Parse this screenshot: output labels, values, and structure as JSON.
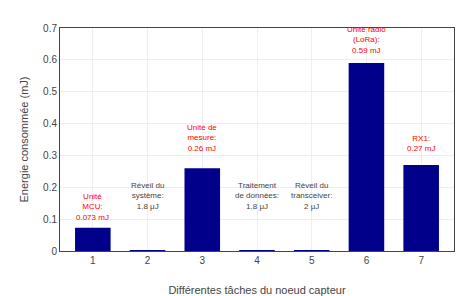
{
  "chart_data": {
    "type": "bar",
    "x": [
      1,
      2,
      3,
      4,
      5,
      6,
      7
    ],
    "values": [
      0.073,
      0.0018,
      0.26,
      0.0018,
      0.002,
      0.59,
      0.27
    ],
    "color": "#00008B",
    "xlabel": "Différentes tâches du noeud capteur",
    "ylabel": "Energie consommée (mJ)",
    "xlim": [
      0.4,
      7.6
    ],
    "xticks": [
      1,
      2,
      3,
      4,
      5,
      6,
      7
    ],
    "ylim": [
      0,
      0.7
    ],
    "yticks": [
      0,
      0.1,
      0.2,
      0.3,
      0.4,
      0.5,
      0.6,
      0.7
    ],
    "grid": true,
    "annotations": [
      {
        "x": 1.0,
        "y": 0.085,
        "text": "Unité\nMCU:\n0.073 mJ",
        "color": "red"
      },
      {
        "x": 2.0,
        "y": 0.12,
        "text": "Réveil du\nsystème:\n1.8 μJ",
        "color": "#444444"
      },
      {
        "x": 3.0,
        "y": 0.3,
        "text": "Unité de\nmesure:\n0.26 mJ",
        "color": "red"
      },
      {
        "x": 4.0,
        "y": 0.12,
        "text": "Traitement\nde données:\n1.8 μJ",
        "color": "#444444"
      },
      {
        "x": 5.0,
        "y": 0.12,
        "text": "Réveil du\ntransceiver:\n2 μJ",
        "color": "#444444"
      },
      {
        "x": 6.0,
        "y": 0.61,
        "text": "Unité radio\n(LoRa):\n0.59 mJ",
        "color": "red"
      },
      {
        "x": 7.0,
        "y": 0.3,
        "text": "RX1:\n0.27 mJ",
        "color": "red"
      }
    ]
  }
}
